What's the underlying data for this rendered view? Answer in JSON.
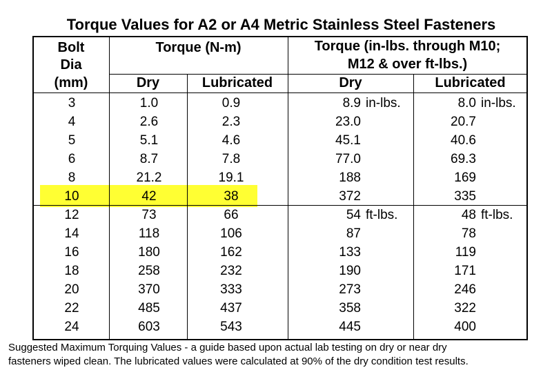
{
  "title": "Torque Values for A2 or A4 Metric Stainless Steel Fasteners",
  "headers": {
    "bolt_line1": "Bolt",
    "bolt_line2": "Dia",
    "bolt_line3": "(mm)",
    "nm_group": "Torque (N-m)",
    "nm_dry": "Dry",
    "nm_lub": "Lubricated",
    "imp_group_line1": "Torque (in-lbs. through M10;",
    "imp_group_line2": "M12 & over ft-lbs.)",
    "imp_dry": "Dry",
    "imp_lub": "Lubricated"
  },
  "units": {
    "in_lbs": "in-lbs.",
    "ft_lbs": "ft-lbs."
  },
  "rows": [
    {
      "dia": "3",
      "nm_dry": "1.0",
      "nm_lub": "0.9",
      "imp_dry": "8.9",
      "imp_lub": "8.0"
    },
    {
      "dia": "4",
      "nm_dry": "2.6",
      "nm_lub": "2.3",
      "imp_dry": "23.0",
      "imp_lub": "20.7"
    },
    {
      "dia": "5",
      "nm_dry": "5.1",
      "nm_lub": "4.6",
      "imp_dry": "45.1",
      "imp_lub": "40.6"
    },
    {
      "dia": "6",
      "nm_dry": "8.7",
      "nm_lub": "7.8",
      "imp_dry": "77.0",
      "imp_lub": "69.3"
    },
    {
      "dia": "8",
      "nm_dry": "21.2",
      "nm_lub": "19.1",
      "imp_dry": "188",
      "imp_lub": "169"
    },
    {
      "dia": "10",
      "nm_dry": "42",
      "nm_lub": "38",
      "imp_dry": "372",
      "imp_lub": "335"
    },
    {
      "dia": "12",
      "nm_dry": "73",
      "nm_lub": "66",
      "imp_dry": "54",
      "imp_lub": "48"
    },
    {
      "dia": "14",
      "nm_dry": "118",
      "nm_lub": "106",
      "imp_dry": "87",
      "imp_lub": "78"
    },
    {
      "dia": "16",
      "nm_dry": "180",
      "nm_lub": "162",
      "imp_dry": "133",
      "imp_lub": "119"
    },
    {
      "dia": "18",
      "nm_dry": "258",
      "nm_lub": "232",
      "imp_dry": "190",
      "imp_lub": "171"
    },
    {
      "dia": "20",
      "nm_dry": "370",
      "nm_lub": "333",
      "imp_dry": "273",
      "imp_lub": "246"
    },
    {
      "dia": "22",
      "nm_dry": "485",
      "nm_lub": "437",
      "imp_dry": "358",
      "imp_lub": "322"
    },
    {
      "dia": "24",
      "nm_dry": "603",
      "nm_lub": "543",
      "imp_dry": "445",
      "imp_lub": "400"
    }
  ],
  "highlight_color": "#ffff33",
  "footer": {
    "line1": "Suggested Maximum Torquing Values - a guide based upon actual lab testing on dry or near dry",
    "line2": "fasteners wiped clean.  The lubricated values were calculated at 90% of the dry condition test results."
  }
}
